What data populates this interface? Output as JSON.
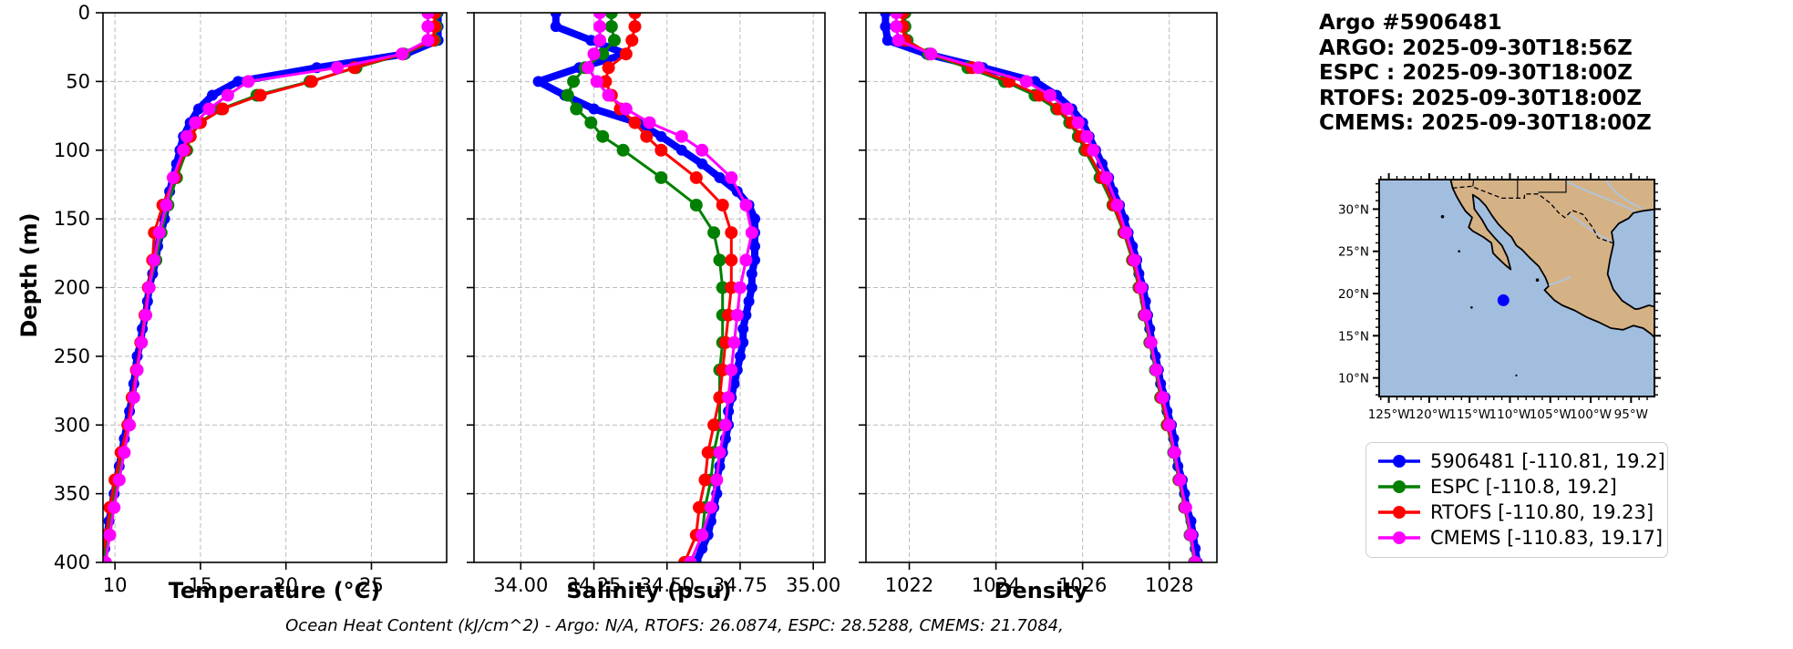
{
  "header": {
    "title": "Argo #5906481",
    "argo_line": "ARGO: 2025-09-30T18:56Z",
    "espc_line": "ESPC : 2025-09-30T18:00Z",
    "rtofs_line": "RTOFS: 2025-09-30T18:00Z",
    "cmems_line": "CMEMS: 2025-09-30T18:00Z"
  },
  "footer": {
    "ohc_note": "Ocean Heat Content (kJ/cm^2) - Argo: N/A,  RTOFS: 26.0874,  ESPC: 28.5288,  CMEMS: 21.7084,"
  },
  "colors": {
    "argo": "#0000ff",
    "espc": "#008000",
    "rtofs": "#ff0000",
    "cmems": "#ff00ff",
    "ocean": "#a2bedf",
    "land": "#d5b286",
    "river": "#a9c6e8",
    "grid": "#bbbbbb"
  },
  "legend": {
    "items": [
      {
        "label": "5906481 [-110.81, 19.2]",
        "color": "#0000ff"
      },
      {
        "label": "ESPC [-110.8, 19.2]",
        "color": "#008000"
      },
      {
        "label": "RTOFS [-110.80, 19.23]",
        "color": "#ff0000"
      },
      {
        "label": "CMEMS [-110.83, 19.17]",
        "color": "#ff00ff"
      }
    ]
  },
  "map": {
    "lon_ticks": [
      -125,
      -120,
      -115,
      -110,
      -105,
      -100,
      -95
    ],
    "lon_tick_labels": [
      "125°W",
      "120°W",
      "115°W",
      "110°W",
      "105°W",
      "100°W",
      "95°W"
    ],
    "lat_ticks": [
      30,
      25,
      20,
      15,
      10
    ],
    "lat_tick_labels": [
      "30°N",
      "25°N",
      "20°N",
      "15°N",
      "10°N"
    ],
    "lon_range": [
      -126.2,
      -92.1
    ],
    "lat_range": [
      7.8,
      33.5
    ],
    "float_marker": {
      "lon": -110.81,
      "lat": 19.2,
      "color": "#0000ff"
    }
  },
  "depths": {
    "argo": [
      0,
      10,
      20,
      30,
      40,
      50,
      60,
      70,
      80,
      90,
      100,
      110,
      120,
      130,
      140,
      150,
      160,
      170,
      180,
      190,
      200,
      210,
      220,
      230,
      240,
      250,
      260,
      270,
      280,
      290,
      300,
      310,
      320,
      330,
      340,
      350,
      360,
      370,
      380,
      390,
      400
    ],
    "model": [
      0,
      10,
      20,
      30,
      40,
      50,
      60,
      70,
      80,
      90,
      100,
      120,
      140,
      160,
      180,
      200,
      220,
      240,
      260,
      280,
      300,
      320,
      340,
      360,
      380,
      400
    ]
  },
  "chart_data": [
    {
      "id": "temperature",
      "type": "line",
      "xlabel": "Temperature (°C)",
      "ylabel": "Depth (m)",
      "xlim": [
        9.3,
        29.4
      ],
      "ylim": [
        0,
        400
      ],
      "xticks": [
        10,
        15,
        20,
        25
      ],
      "yticks": [
        0,
        50,
        100,
        150,
        200,
        250,
        300,
        350,
        400
      ],
      "show_ytick_labels": true,
      "grid": true,
      "series": [
        {
          "name": "5906481",
          "color": "#0000ff",
          "grid": "argo",
          "values": [
            28.9,
            28.9,
            28.9,
            27.0,
            21.8,
            17.2,
            15.7,
            14.9,
            14.4,
            14.0,
            13.8,
            13.6,
            13.4,
            13.2,
            13.0,
            12.9,
            12.7,
            12.5,
            12.4,
            12.2,
            12.0,
            11.9,
            11.8,
            11.6,
            11.5,
            11.3,
            11.2,
            11.1,
            11.0,
            10.85,
            10.7,
            10.55,
            10.4,
            10.25,
            10.1,
            9.95,
            9.8,
            9.65,
            9.55,
            9.4,
            9.3
          ]
        },
        {
          "name": "ESPC",
          "color": "#008000",
          "grid": "model",
          "values": [
            28.8,
            28.8,
            28.7,
            26.9,
            24.1,
            21.4,
            18.3,
            16.2,
            14.9,
            14.4,
            14.2,
            13.6,
            13.1,
            12.7,
            12.4,
            12.0,
            11.8,
            11.55,
            11.3,
            11.05,
            10.8,
            10.45,
            10.1,
            9.85,
            9.6,
            9.3
          ]
        },
        {
          "name": "RTOFS",
          "color": "#ff0000",
          "grid": "model",
          "values": [
            28.7,
            28.7,
            28.6,
            26.8,
            24.0,
            21.5,
            18.5,
            16.3,
            15.0,
            14.4,
            14.1,
            13.5,
            12.8,
            12.3,
            12.2,
            11.95,
            11.75,
            11.5,
            11.25,
            11.0,
            10.75,
            10.35,
            10.0,
            9.7,
            9.5,
            9.15
          ]
        },
        {
          "name": "CMEMS",
          "color": "#ff00ff",
          "grid": "model",
          "values": [
            28.3,
            28.3,
            28.3,
            26.8,
            23.0,
            17.8,
            16.6,
            15.5,
            14.7,
            14.2,
            14.0,
            13.4,
            13.0,
            12.6,
            12.3,
            12.0,
            11.8,
            11.55,
            11.3,
            11.1,
            10.85,
            10.55,
            10.25,
            9.95,
            9.7,
            9.45
          ]
        }
      ]
    },
    {
      "id": "salinity",
      "type": "line",
      "xlabel": "Salinity (psu)",
      "ylabel": "Depth (m)",
      "xlim": [
        33.84,
        35.04
      ],
      "ylim": [
        0,
        400
      ],
      "xticks": [
        34.0,
        34.25,
        34.5,
        34.75,
        35.0
      ],
      "xtick_labels": [
        "34.00",
        "34.25",
        "34.50",
        "34.75",
        "35.00"
      ],
      "yticks": [
        0,
        50,
        100,
        150,
        200,
        250,
        300,
        350,
        400
      ],
      "show_ytick_labels": false,
      "grid": true,
      "series": [
        {
          "name": "5906481",
          "color": "#0000ff",
          "grid": "argo",
          "values": [
            34.12,
            34.12,
            34.24,
            34.36,
            34.2,
            34.06,
            34.15,
            34.25,
            34.4,
            34.48,
            34.55,
            34.62,
            34.68,
            34.74,
            34.78,
            34.8,
            34.8,
            34.8,
            34.8,
            34.79,
            34.79,
            34.78,
            34.77,
            34.76,
            34.76,
            34.75,
            34.74,
            34.73,
            34.72,
            34.71,
            34.71,
            34.7,
            34.69,
            34.68,
            34.67,
            34.67,
            34.66,
            34.65,
            34.64,
            34.62,
            34.6
          ]
        },
        {
          "name": "ESPC",
          "color": "#008000",
          "grid": "model",
          "values": [
            34.31,
            34.31,
            34.32,
            34.28,
            34.22,
            34.18,
            34.16,
            34.19,
            34.24,
            34.28,
            34.35,
            34.48,
            34.6,
            34.66,
            34.68,
            34.69,
            34.69,
            34.69,
            34.68,
            34.68,
            34.68,
            34.66,
            34.65,
            34.63,
            34.62,
            34.58
          ]
        },
        {
          "name": "RTOFS",
          "color": "#ff0000",
          "grid": "model",
          "values": [
            34.39,
            34.39,
            34.38,
            34.36,
            34.3,
            34.29,
            34.31,
            34.34,
            34.39,
            34.43,
            34.48,
            34.6,
            34.69,
            34.72,
            34.72,
            34.72,
            34.71,
            34.7,
            34.69,
            34.68,
            34.66,
            34.64,
            34.63,
            34.61,
            34.6,
            34.56
          ]
        },
        {
          "name": "CMEMS",
          "color": "#ff00ff",
          "grid": "model",
          "values": [
            34.27,
            34.27,
            34.27,
            34.25,
            34.23,
            34.26,
            34.3,
            34.36,
            34.44,
            34.55,
            34.62,
            34.72,
            34.77,
            34.79,
            34.77,
            34.75,
            34.74,
            34.73,
            34.72,
            34.71,
            34.7,
            34.68,
            34.67,
            34.65,
            34.62,
            34.58
          ]
        }
      ]
    },
    {
      "id": "density",
      "type": "line",
      "xlabel": "Density",
      "ylabel": "Depth (m)",
      "xlim": [
        1021.0,
        1029.1
      ],
      "ylim": [
        0,
        400
      ],
      "xticks": [
        1022,
        1024,
        1026,
        1028
      ],
      "yticks": [
        0,
        50,
        100,
        150,
        200,
        250,
        300,
        350,
        400
      ],
      "show_ytick_labels": false,
      "grid": true,
      "series": [
        {
          "name": "5906481",
          "color": "#0000ff",
          "grid": "argo",
          "values": [
            1021.45,
            1021.45,
            1021.5,
            1022.4,
            1023.7,
            1024.9,
            1025.4,
            1025.75,
            1026.0,
            1026.15,
            1026.3,
            1026.45,
            1026.6,
            1026.7,
            1026.85,
            1026.95,
            1027.05,
            1027.15,
            1027.25,
            1027.3,
            1027.4,
            1027.45,
            1027.5,
            1027.55,
            1027.6,
            1027.68,
            1027.75,
            1027.8,
            1027.9,
            1027.95,
            1028.05,
            1028.1,
            1028.15,
            1028.2,
            1028.3,
            1028.35,
            1028.4,
            1028.5,
            1028.55,
            1028.6,
            1028.65
          ]
        },
        {
          "name": "ESPC",
          "color": "#008000",
          "grid": "model",
          "values": [
            1021.9,
            1021.9,
            1021.95,
            1022.45,
            1023.35,
            1024.2,
            1024.9,
            1025.4,
            1025.7,
            1025.9,
            1026.05,
            1026.4,
            1026.7,
            1026.95,
            1027.15,
            1027.3,
            1027.42,
            1027.55,
            1027.68,
            1027.8,
            1027.95,
            1028.1,
            1028.22,
            1028.35,
            1028.48,
            1028.58
          ]
        },
        {
          "name": "RTOFS",
          "color": "#ff0000",
          "grid": "model",
          "values": [
            1021.85,
            1021.85,
            1021.9,
            1022.5,
            1023.45,
            1024.3,
            1025.0,
            1025.45,
            1025.75,
            1025.95,
            1026.1,
            1026.45,
            1026.72,
            1026.97,
            1027.17,
            1027.32,
            1027.44,
            1027.57,
            1027.7,
            1027.82,
            1027.97,
            1028.12,
            1028.24,
            1028.37,
            1028.5,
            1028.6
          ]
        },
        {
          "name": "CMEMS",
          "color": "#ff00ff",
          "grid": "model",
          "values": [
            1021.7,
            1021.7,
            1021.75,
            1022.5,
            1023.6,
            1024.7,
            1025.25,
            1025.65,
            1025.9,
            1026.1,
            1026.25,
            1026.55,
            1026.8,
            1027.0,
            1027.2,
            1027.35,
            1027.45,
            1027.58,
            1027.7,
            1027.85,
            1028.0,
            1028.12,
            1028.25,
            1028.38,
            1028.5,
            1028.6
          ]
        }
      ]
    }
  ]
}
